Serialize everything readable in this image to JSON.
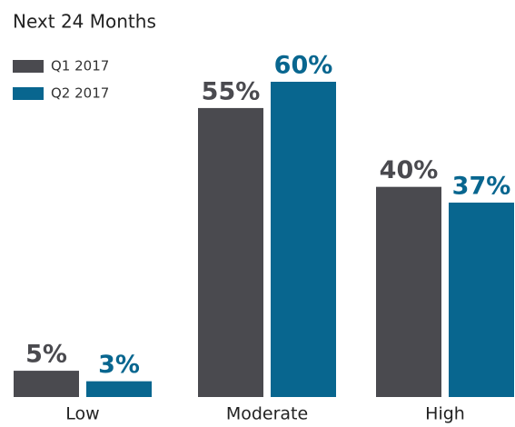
{
  "chart_data": {
    "type": "bar",
    "title": "Next 24 Months",
    "categories": [
      "Low",
      "Moderate",
      "High"
    ],
    "series": [
      {
        "name": "Q1 2017",
        "color": "#4a4a4f",
        "values": [
          5,
          55,
          40
        ],
        "value_labels": [
          "5%",
          "55%",
          "40%"
        ]
      },
      {
        "name": "Q2 2017",
        "color": "#08668f",
        "values": [
          3,
          60,
          37
        ],
        "value_labels": [
          "3%",
          "60%",
          "37%"
        ]
      }
    ]
  }
}
